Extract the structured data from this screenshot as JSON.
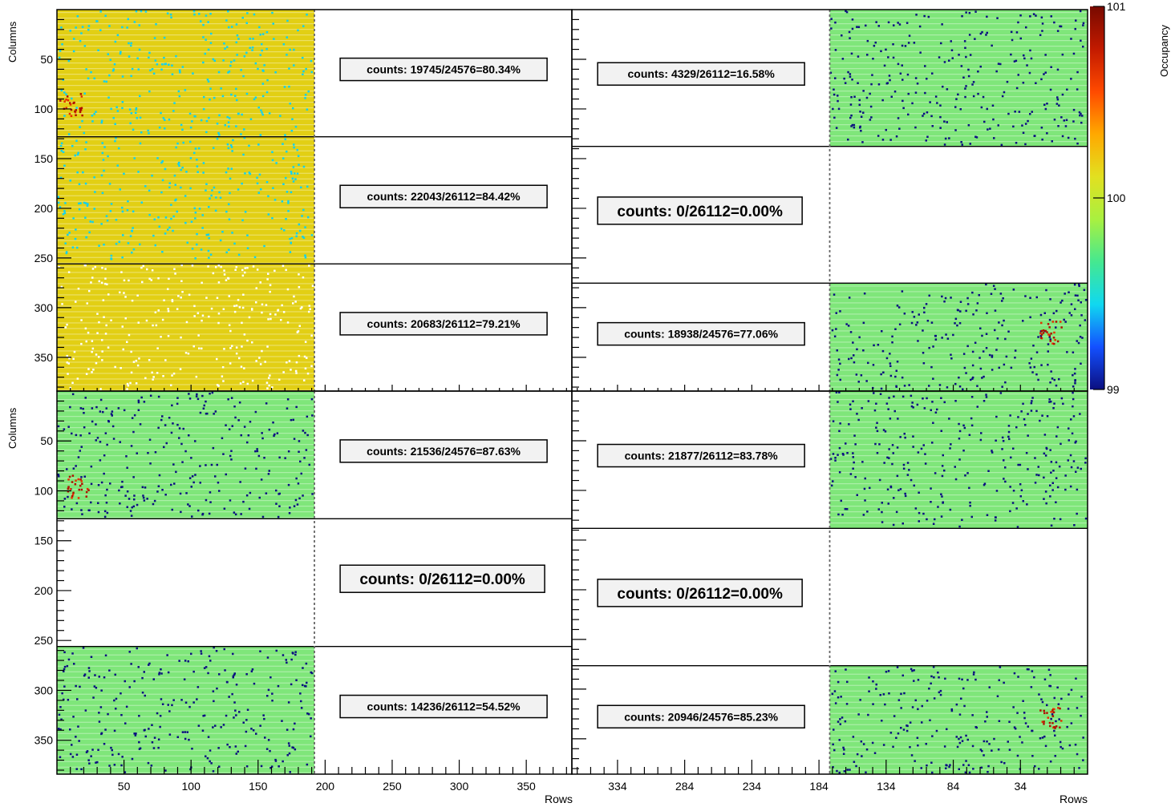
{
  "chart_data": {
    "type": "heatmap",
    "y_axis_label": "Columns",
    "x_axis_label": "Rows",
    "color_axis_label": "Occupancy",
    "color_axis_ticks": [
      "101",
      "100",
      "99"
    ],
    "color_scale": [
      "#0b0f80",
      "#1350ff",
      "#10d8f0",
      "#45e890",
      "#a9f040",
      "#e2e020",
      "#ffa800",
      "#ff4a00",
      "#c21a00",
      "#780a00"
    ],
    "panels": [
      {
        "name": "top-left",
        "x_range": [
          0,
          384
        ],
        "x_ticks": [],
        "y_range": [
          384,
          0
        ],
        "y_ticks": [
          50,
          100,
          150,
          200,
          250,
          300,
          350
        ],
        "x_tick_labels": [],
        "chips": [
          {
            "columns": [
              0,
              128
            ],
            "fill_fraction": 0.5,
            "side": "left",
            "color": "#e2cf14",
            "speckle": "#10d0f0",
            "hot": [
              [
                10,
                95
              ]
            ],
            "counts": "counts: 19745/24576=80.34%",
            "big": false
          },
          {
            "columns": [
              128,
              256
            ],
            "fill_fraction": 0.5,
            "side": "left",
            "color": "#e2cf14",
            "speckle": "#10d0f0",
            "hot": [],
            "counts": "counts: 22043/26112=84.42%",
            "big": false
          },
          {
            "columns": [
              256,
              384
            ],
            "fill_fraction": 0.5,
            "side": "left",
            "color": "#e2cf14",
            "speckle": "#ffffff",
            "hot": [],
            "counts": "counts: 20683/26112=79.21%",
            "big": false
          }
        ]
      },
      {
        "name": "top-right",
        "y_range": [
          384,
          0
        ],
        "chips": [
          {
            "columns": [
              0,
              128
            ],
            "fill_fraction": 0.5,
            "side": "right",
            "color": "#7fe67a",
            "speckle": "#0b0f80",
            "hot": [],
            "counts": "counts: 4329/26112=16.58%",
            "big": false
          },
          {
            "columns": [
              128,
              256
            ],
            "fill_fraction": 0.5,
            "side": "right",
            "color": null,
            "speckle": null,
            "hot": [],
            "counts": "counts: 0/26112=0.00%",
            "big": true
          },
          {
            "columns": [
              256,
              384
            ],
            "fill_fraction": 0.5,
            "side": "right",
            "color": "#7fe67a",
            "speckle": "#0b0f80",
            "hot": [
              [
                28,
                305
              ]
            ],
            "counts": "counts: 18938/24576=77.06%",
            "big": false
          }
        ]
      },
      {
        "name": "bottom-left",
        "x_range": [
          0,
          384
        ],
        "y_range": [
          384,
          0
        ],
        "x_ticks": [
          50,
          100,
          150,
          200,
          250,
          300,
          350
        ],
        "chips": [
          {
            "columns": [
              0,
              128
            ],
            "fill_fraction": 0.5,
            "side": "left",
            "color": "#7fe67a",
            "speckle": "#0b0f80",
            "hot": [
              [
                15,
                95
              ]
            ],
            "counts": "counts: 21536/24576=87.63%",
            "big": false
          },
          {
            "columns": [
              128,
              256
            ],
            "fill_fraction": 0.5,
            "side": "left",
            "color": null,
            "speckle": null,
            "hot": [],
            "counts": "counts: 0/26112=0.00%",
            "big": true
          },
          {
            "columns": [
              256,
              384
            ],
            "fill_fraction": 0.5,
            "side": "left",
            "color": "#7fe67a",
            "speckle": "#0b0f80",
            "hot": [],
            "counts": "counts: 14236/26112=54.52%",
            "big": false
          }
        ]
      },
      {
        "name": "bottom-right",
        "x_range": [
          384,
          0
        ],
        "y_range": [
          384,
          0
        ],
        "x_ticks": [
          334,
          284,
          234,
          184,
          134,
          84,
          34
        ],
        "chips": [
          {
            "columns": [
              0,
              128
            ],
            "fill_fraction": 0.5,
            "side": "right",
            "color": "#7fe67a",
            "speckle": "#0b0f80",
            "hot": [],
            "counts": "counts: 21877/26112=83.78%",
            "big": false
          },
          {
            "columns": [
              128,
              256
            ],
            "fill_fraction": 0.5,
            "side": "right",
            "color": null,
            "speckle": null,
            "hot": [],
            "counts": "counts: 0/26112=0.00%",
            "big": true
          },
          {
            "columns": [
              256,
              384
            ],
            "fill_fraction": 0.5,
            "side": "right",
            "color": "#7fe67a",
            "speckle": "#0b0f80",
            "hot": [
              [
                28,
                308
              ]
            ],
            "counts": "counts: 20946/24576=85.23%",
            "big": false
          }
        ]
      }
    ],
    "y_tick_labels_top": [
      "50",
      "100",
      "150",
      "200",
      "250",
      "300",
      "350"
    ],
    "y_tick_labels_bottom": [
      "50",
      "100",
      "150",
      "200",
      "250",
      "300",
      "350"
    ],
    "x_tick_labels_left": [
      "50",
      "100",
      "150",
      "200",
      "250",
      "300",
      "350"
    ],
    "x_tick_labels_right": [
      "334",
      "284",
      "234",
      "184",
      "134",
      "84",
      "34"
    ]
  }
}
